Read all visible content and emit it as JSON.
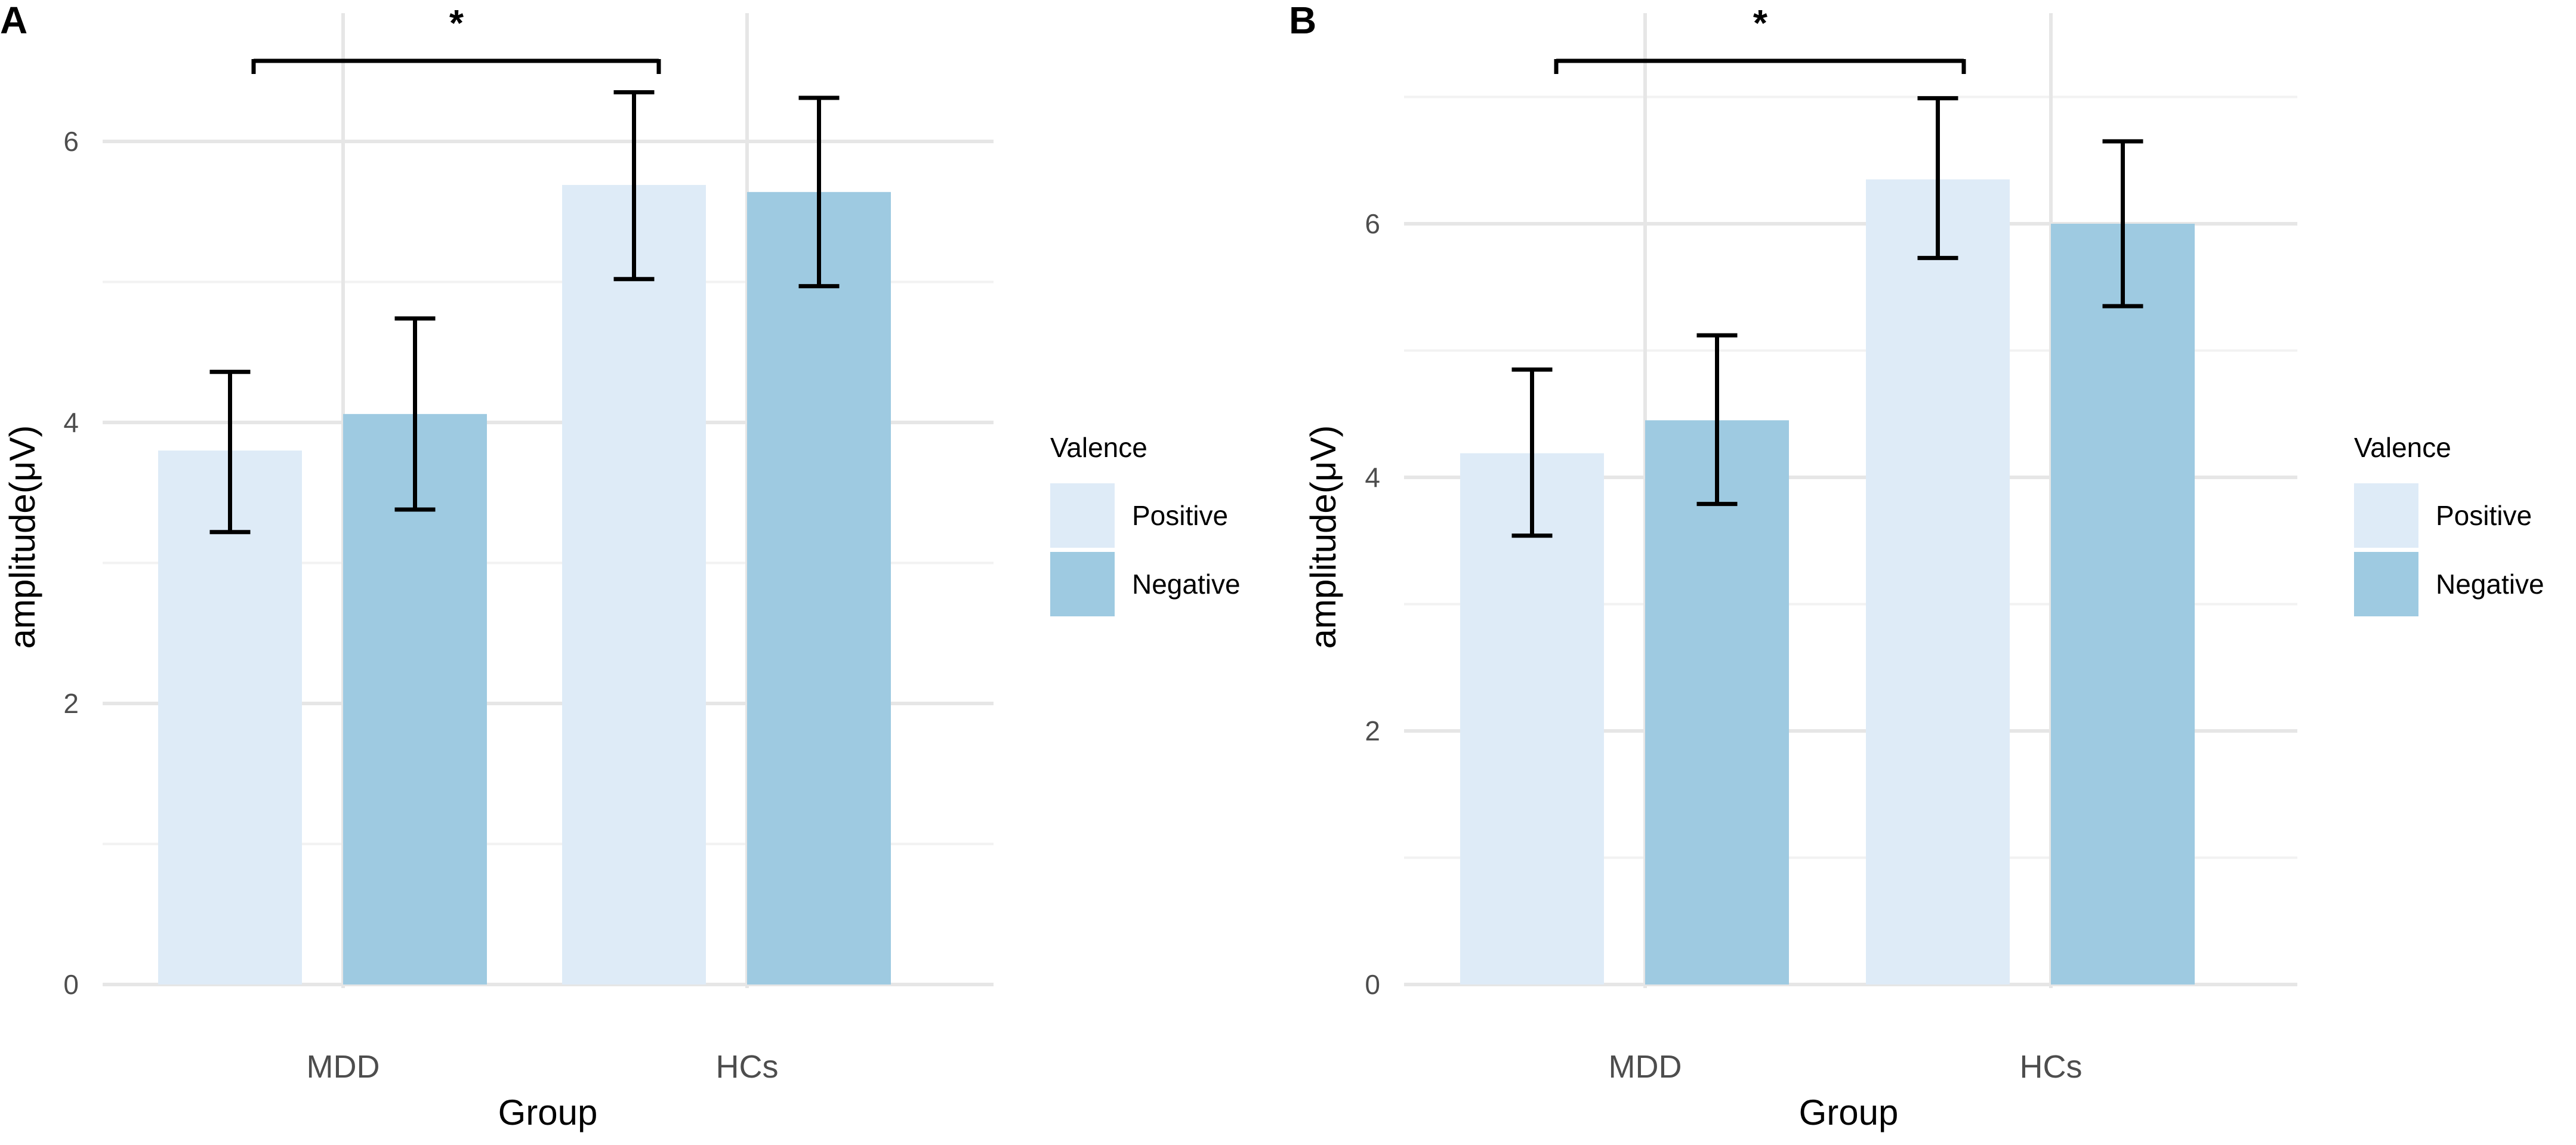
{
  "chart_data": [
    {
      "panel_label": "A",
      "type": "bar",
      "categories": [
        "MDD",
        "HCs"
      ],
      "series": [
        {
          "name": "Positive",
          "color": "#deebf7",
          "values": [
            3.8,
            5.69
          ],
          "error_low": [
            3.22,
            5.02
          ],
          "error_high": [
            4.36,
            6.35
          ]
        },
        {
          "name": "Negative",
          "color": "#9ecae1",
          "values": [
            4.06,
            5.64
          ],
          "error_low": [
            3.38,
            4.97
          ],
          "error_high": [
            4.74,
            6.31
          ]
        }
      ],
      "xlabel": "Group",
      "ylabel": "amplitude(μV)",
      "ylim": [
        0,
        6.92
      ],
      "y_ticks": [
        0,
        2,
        4,
        6
      ],
      "y_tick_labels": [
        "0",
        "2",
        "4",
        "6"
      ],
      "grid": true,
      "legend_title": "Valence",
      "legend_position": "right",
      "significance": {
        "from": "MDD",
        "to": "HCs",
        "label": "*"
      }
    },
    {
      "panel_label": "B",
      "type": "bar",
      "categories": [
        "MDD",
        "HCs"
      ],
      "series": [
        {
          "name": "Positive",
          "color": "#deebf7",
          "values": [
            4.19,
            6.35
          ],
          "error_low": [
            3.54,
            5.73
          ],
          "error_high": [
            4.85,
            6.99
          ]
        },
        {
          "name": "Negative",
          "color": "#9ecae1",
          "values": [
            4.45,
            6.0
          ],
          "error_low": [
            3.79,
            5.35
          ],
          "error_high": [
            5.12,
            6.65
          ]
        }
      ],
      "xlabel": "Group",
      "ylabel": "amplitude(μV)",
      "ylim": [
        0,
        7.6
      ],
      "y_ticks": [
        0,
        2,
        4,
        6
      ],
      "y_tick_labels": [
        "0",
        "2",
        "4",
        "6"
      ],
      "grid": true,
      "legend_title": "Valence",
      "legend_position": "right",
      "significance": {
        "from": "MDD",
        "to": "HCs",
        "label": "*"
      }
    }
  ]
}
